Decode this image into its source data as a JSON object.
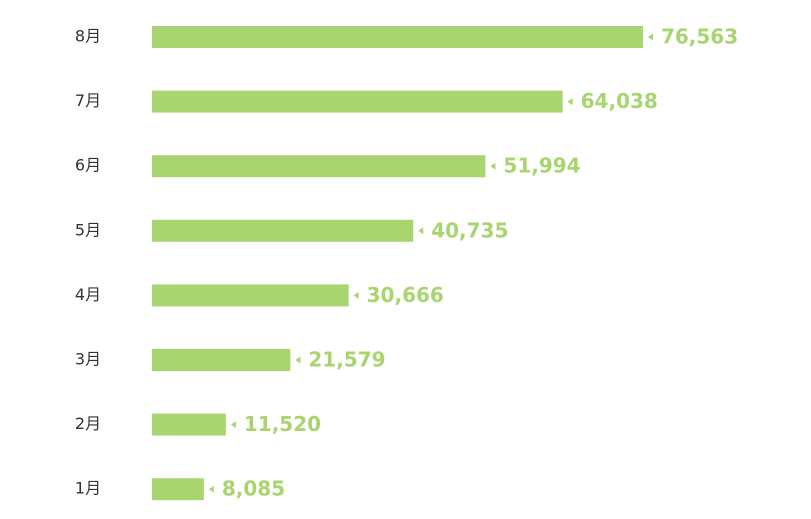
{
  "chart_data": {
    "type": "bar",
    "orientation": "horizontal",
    "categories": [
      "8月",
      "7月",
      "6月",
      "5月",
      "4月",
      "3月",
      "2月",
      "1月"
    ],
    "values": [
      76563,
      64038,
      51994,
      40735,
      30666,
      21579,
      11520,
      8085
    ],
    "value_labels": [
      "76,563",
      "64,038",
      "51,994",
      "40,735",
      "30,666",
      "21,579",
      "11,520",
      "8,085"
    ],
    "color": "#a8d56f",
    "xlim": [
      0,
      80000
    ]
  }
}
